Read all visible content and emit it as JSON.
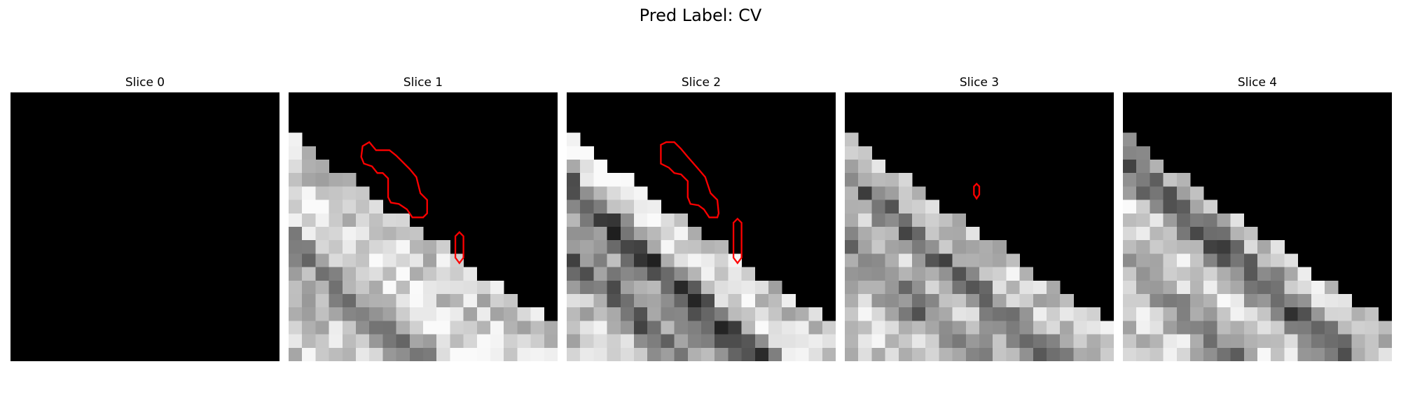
{
  "figure": {
    "title": "Pred Label: CV"
  },
  "panels": [
    {
      "title": "Slice 0"
    },
    {
      "title": "Slice 1"
    },
    {
      "title": "Slice 2"
    },
    {
      "title": "Slice 3"
    },
    {
      "title": "Slice 4"
    }
  ],
  "colors": {
    "background": "#ffffff",
    "contour": "#ff0000",
    "masked": "#000000"
  },
  "image_style": {
    "colormap": "gray",
    "grid": "20x20 pixel blocks",
    "overlay": "red contour outline"
  }
}
